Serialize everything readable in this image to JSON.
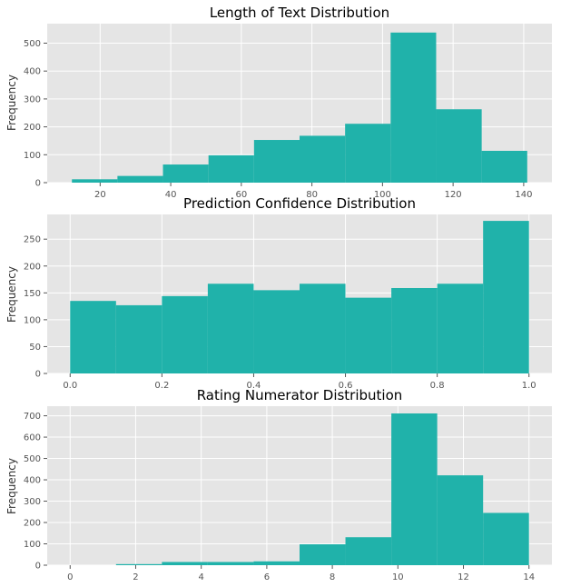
{
  "colors": {
    "bar": "#20b2aa",
    "plot_background": "#e5e5e5",
    "grid": "#ffffff",
    "tick_label": "#555555"
  },
  "chart_data": [
    {
      "type": "bar",
      "title": "Length of Text Distribution",
      "xlabel": "",
      "ylabel": "Frequency",
      "grid": true,
      "xlim": [
        5,
        148
      ],
      "ylim": [
        0,
        570
      ],
      "xticks": [
        20,
        40,
        60,
        80,
        100,
        120,
        140
      ],
      "yticks": [
        0,
        100,
        200,
        300,
        400,
        500
      ],
      "bin_edges": [
        12,
        24.9,
        37.8,
        50.7,
        63.6,
        76.5,
        89.4,
        102.3,
        115.2,
        128.1,
        141
      ],
      "values": [
        12,
        24,
        65,
        98,
        153,
        168,
        211,
        538,
        263,
        114
      ]
    },
    {
      "type": "bar",
      "title": "Prediction Confidence Distribution",
      "xlabel": "",
      "ylabel": "Frequency",
      "grid": true,
      "xlim": [
        -0.05,
        1.05
      ],
      "ylim": [
        0,
        296
      ],
      "xticks": [
        0.0,
        0.2,
        0.4,
        0.6,
        0.8,
        1.0
      ],
      "yticks": [
        0,
        50,
        100,
        150,
        200,
        250
      ],
      "bin_edges": [
        0.0,
        0.1,
        0.2,
        0.3,
        0.4,
        0.5,
        0.6,
        0.7,
        0.8,
        0.9,
        1.0
      ],
      "values": [
        135,
        127,
        144,
        167,
        155,
        167,
        141,
        159,
        167,
        284
      ]
    },
    {
      "type": "bar",
      "title": "Rating Numerator Distribution",
      "xlabel": "",
      "ylabel": "Frequency",
      "grid": true,
      "xlim": [
        -0.7,
        14.7
      ],
      "ylim": [
        0,
        745
      ],
      "xticks": [
        0,
        2,
        4,
        6,
        8,
        10,
        12,
        14
      ],
      "yticks": [
        0,
        100,
        200,
        300,
        400,
        500,
        600,
        700
      ],
      "bin_edges": [
        0,
        1.4,
        2.8,
        4.2,
        5.6,
        7.0,
        8.4,
        9.8,
        11.2,
        12.6,
        14.0
      ],
      "values": [
        0,
        5,
        15,
        15,
        18,
        98,
        131,
        711,
        421,
        245
      ]
    }
  ]
}
